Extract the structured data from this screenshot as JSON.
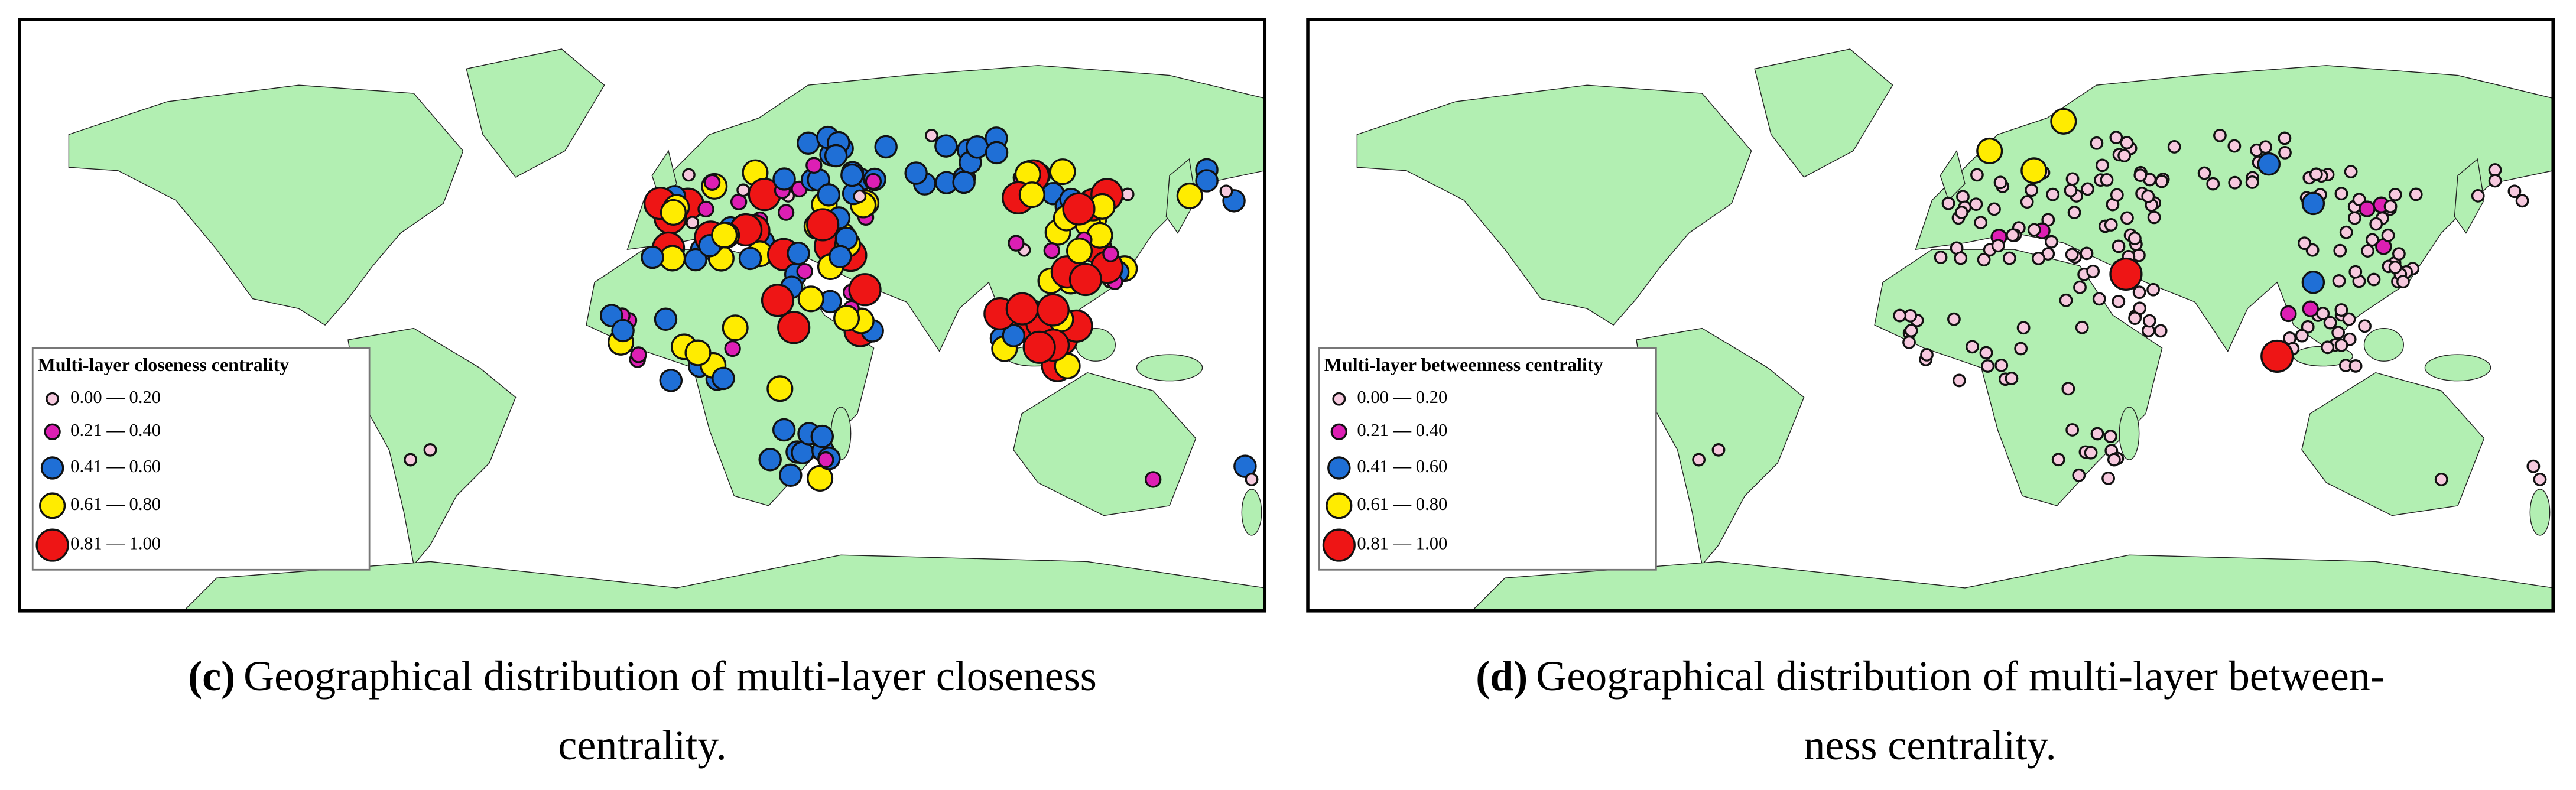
{
  "panels": [
    {
      "legend_title": "Multi-layer closeness centrality",
      "legend": [
        "0.00 — 0.20",
        "0.21 — 0.40",
        "0.41 — 0.60",
        "0.61 — 0.80",
        "0.81 — 1.00"
      ],
      "label": "(c)",
      "caption": [
        "Geographical distribution of multi-layer closeness",
        "centrality."
      ]
    },
    {
      "legend_title": "Multi-layer betweenness centrality",
      "legend": [
        "0.00 — 0.20",
        "0.21 — 0.40",
        "0.41 — 0.60",
        "0.61 — 0.80",
        "0.81 — 1.00"
      ],
      "label": "(d)",
      "caption": [
        "Geographical distribution of multi-layer between-",
        "ness centrality."
      ]
    }
  ],
  "colors": [
    "#f6c9de",
    "#dd1fb4",
    "#1f6fd6",
    "#ffec00",
    "#ee1515"
  ]
}
